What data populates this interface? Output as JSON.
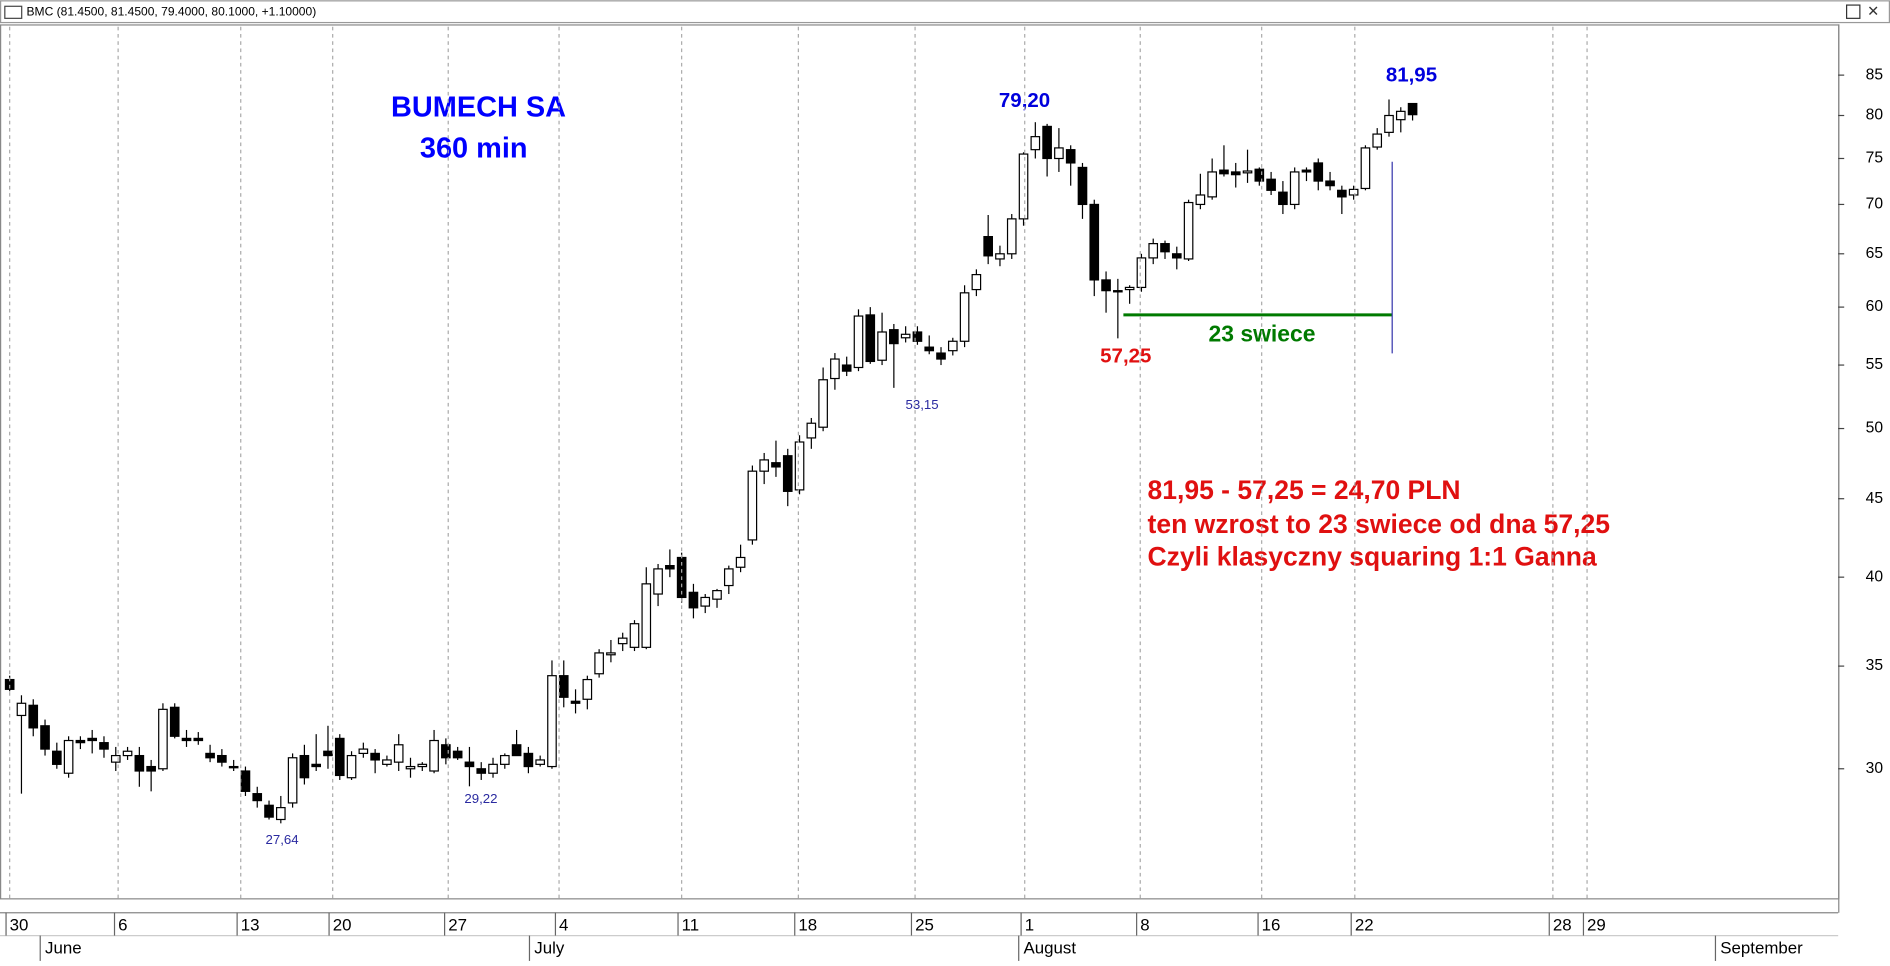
{
  "window_title": "BMC (81.4500, 81.4500, 79.4000, 80.1000, +1.10000)",
  "chart_data": {
    "type": "candlestick",
    "title": "BUMECH SA",
    "subtitle": "360 min",
    "log_scale": true,
    "up_color": "#ffffff",
    "down_color": "#000000",
    "open": [
      34.3,
      32.5,
      33.0,
      32.0,
      30.8,
      29.8,
      31.3,
      31.4,
      31.2,
      30.3,
      30.6,
      30.6,
      30.1,
      30.0,
      32.9,
      31.4,
      31.4,
      30.7,
      30.6,
      30.1,
      29.9,
      28.9,
      28.4,
      27.8,
      28.5,
      30.6,
      30.2,
      30.8,
      31.4,
      29.6,
      30.7,
      30.7,
      30.2,
      30.3,
      30.0,
      30.1,
      29.9,
      31.1,
      30.8,
      30.3,
      30.0,
      29.8,
      30.2,
      31.1,
      30.7,
      30.2,
      30.1,
      34.5,
      33.2,
      33.3,
      34.6,
      35.6,
      36.2,
      36.0,
      36.0,
      39.0,
      40.7,
      41.2,
      39.1,
      38.3,
      38.7,
      39.5,
      40.6,
      42.3,
      46.9,
      47.5,
      48.0,
      45.6,
      49.3,
      50.1,
      53.9,
      55.0,
      54.8,
      59.3,
      55.4,
      58.0,
      57.3,
      57.8,
      56.5,
      56.0,
      56.2,
      57.0,
      61.6,
      66.7,
      64.5,
      65.0,
      68.5,
      76.0,
      78.7,
      75.0,
      76.0,
      74.0,
      70.0,
      62.5,
      61.4,
      61.6,
      61.8,
      64.6,
      66.0,
      65.0,
      64.5,
      70.0,
      70.8,
      73.7,
      73.5,
      73.4,
      73.8,
      72.7,
      71.3,
      70.0,
      73.7,
      74.5,
      72.5,
      71.5,
      71.0,
      71.7,
      76.3,
      78.0,
      79.5,
      81.45
    ],
    "high": [
      34.5,
      33.5,
      33.3,
      32.3,
      31.2,
      31.5,
      31.5,
      31.8,
      31.5,
      31.0,
      31.0,
      31.0,
      30.4,
      33.1,
      33.1,
      31.8,
      31.7,
      31.1,
      30.9,
      30.4,
      30.1,
      29.2,
      28.6,
      28.8,
      30.7,
      31.1,
      31.6,
      32.0,
      31.6,
      30.8,
      31.2,
      30.9,
      30.6,
      31.6,
      30.5,
      30.3,
      31.8,
      31.4,
      31.0,
      31.0,
      30.3,
      30.5,
      30.7,
      31.8,
      31.0,
      30.6,
      35.3,
      35.3,
      33.8,
      34.5,
      35.9,
      36.4,
      36.8,
      37.5,
      40.6,
      40.8,
      41.7,
      41.5,
      39.6,
      39.0,
      39.3,
      40.7,
      42.0,
      47.3,
      48.2,
      49.1,
      48.5,
      49.5,
      50.8,
      54.8,
      56.0,
      55.7,
      59.8,
      60.0,
      59.5,
      58.5,
      58.3,
      58.3,
      57.5,
      56.5,
      57.3,
      62.0,
      63.5,
      68.9,
      65.8,
      69.0,
      75.7,
      79.2,
      79.0,
      78.5,
      76.5,
      74.5,
      70.5,
      63.3,
      62.6,
      62.0,
      65.0,
      66.5,
      66.3,
      65.7,
      70.5,
      73.3,
      75.0,
      76.5,
      74.5,
      76.0,
      74.0,
      73.5,
      72.5,
      74.0,
      74.0,
      75.0,
      73.5,
      72.0,
      72.0,
      76.5,
      78.5,
      81.95,
      81.0,
      81.45
    ],
    "low": [
      33.7,
      28.9,
      31.5,
      30.6,
      30.0,
      29.6,
      30.9,
      30.7,
      30.5,
      29.9,
      30.4,
      29.2,
      29.0,
      29.9,
      31.4,
      31.0,
      31.1,
      30.3,
      30.1,
      29.9,
      28.8,
      28.3,
      27.8,
      27.64,
      28.3,
      29.3,
      29.9,
      30.0,
      29.5,
      29.5,
      30.5,
      29.8,
      30.1,
      29.9,
      29.6,
      29.9,
      29.8,
      30.2,
      30.4,
      29.22,
      29.5,
      29.6,
      30.0,
      30.6,
      29.8,
      30.1,
      30.0,
      32.9,
      32.6,
      32.8,
      34.4,
      35.2,
      35.8,
      35.8,
      35.9,
      38.3,
      40.0,
      38.5,
      37.6,
      37.9,
      38.2,
      39.0,
      40.3,
      42.0,
      46.0,
      46.5,
      44.5,
      45.3,
      48.5,
      49.8,
      53.0,
      54.1,
      54.5,
      55.1,
      55.0,
      53.15,
      56.9,
      56.7,
      55.9,
      55.0,
      55.8,
      56.5,
      61.0,
      64.0,
      63.8,
      64.5,
      67.8,
      75.0,
      73.0,
      73.5,
      72.0,
      68.5,
      61.0,
      59.5,
      57.25,
      60.3,
      61.4,
      64.0,
      64.5,
      63.5,
      64.3,
      69.5,
      70.5,
      73.0,
      71.8,
      72.3,
      72.0,
      71.0,
      69.0,
      69.5,
      72.5,
      71.5,
      71.5,
      69.0,
      70.5,
      71.5,
      76.0,
      77.5,
      78.0,
      79.4
    ],
    "close": [
      33.8,
      33.1,
      31.9,
      30.9,
      30.2,
      31.3,
      31.2,
      31.3,
      30.9,
      30.6,
      30.8,
      29.9,
      29.9,
      32.8,
      31.5,
      31.3,
      31.3,
      30.5,
      30.3,
      30.1,
      29.0,
      28.6,
      27.9,
      28.3,
      30.5,
      29.6,
      30.1,
      30.6,
      29.7,
      30.6,
      30.9,
      30.4,
      30.4,
      31.1,
      30.1,
      30.2,
      31.3,
      30.5,
      30.5,
      30.1,
      29.8,
      30.2,
      30.6,
      30.6,
      30.1,
      30.4,
      34.5,
      33.4,
      33.1,
      34.3,
      35.7,
      35.7,
      36.5,
      37.3,
      39.6,
      40.5,
      40.5,
      38.8,
      38.2,
      38.8,
      39.2,
      40.5,
      41.2,
      46.9,
      47.7,
      47.2,
      45.5,
      49.0,
      50.4,
      53.8,
      55.5,
      54.5,
      59.2,
      55.3,
      57.8,
      56.8,
      57.6,
      57.0,
      56.2,
      55.5,
      57.0,
      61.3,
      63.0,
      64.8,
      65.0,
      68.5,
      75.5,
      77.5,
      75.0,
      76.2,
      74.5,
      70.0,
      62.5,
      61.5,
      61.5,
      61.8,
      64.6,
      66.0,
      65.2,
      64.6,
      70.2,
      71.0,
      73.5,
      73.3,
      73.2,
      73.6,
      72.5,
      71.5,
      70.0,
      73.5,
      73.5,
      72.5,
      72.0,
      70.8,
      71.6,
      76.2,
      77.8,
      80.0,
      80.5,
      80.1
    ],
    "xlim": [
      -0.82,
      155.1
    ],
    "xticks": [
      {
        "value": 0,
        "label": "30"
      },
      {
        "value": 9.2,
        "label": "6"
      },
      {
        "value": 19.6,
        "label": "13"
      },
      {
        "value": 27.4,
        "label": "20"
      },
      {
        "value": 37.2,
        "label": "27"
      },
      {
        "value": 46.6,
        "label": "4"
      },
      {
        "value": 57.0,
        "label": "11"
      },
      {
        "value": 66.9,
        "label": "18"
      },
      {
        "value": 76.8,
        "label": "25"
      },
      {
        "value": 86.1,
        "label": "1"
      },
      {
        "value": 95.9,
        "label": "8"
      },
      {
        "value": 106.2,
        "label": "16"
      },
      {
        "value": 114.1,
        "label": "22"
      },
      {
        "value": 130.9,
        "label": "28"
      },
      {
        "value": 133.8,
        "label": "29"
      }
    ],
    "month_ticks": [
      {
        "value": 3.0,
        "label": "June"
      },
      {
        "value": 44.5,
        "label": "July"
      },
      {
        "value": 86.0,
        "label": "August"
      },
      {
        "value": 145.1,
        "label": "September"
      }
    ],
    "ylim": [
      24.7,
      91.4
    ],
    "yticks": [
      30,
      35,
      40,
      45,
      50,
      55,
      60,
      65,
      70,
      75,
      80,
      85
    ],
    "price_labels": [
      "79,20",
      "81,95",
      "53,15",
      "29,22",
      "27,64"
    ],
    "low_label": "57,25",
    "count_label": "23 swiece",
    "notes": [
      "81,95 - 57,25 = 24,70 PLN",
      "ten wzrost to 23 swiece od dna 57,25",
      "Czyli klasyczny squaring 1:1 Ganna"
    ]
  }
}
